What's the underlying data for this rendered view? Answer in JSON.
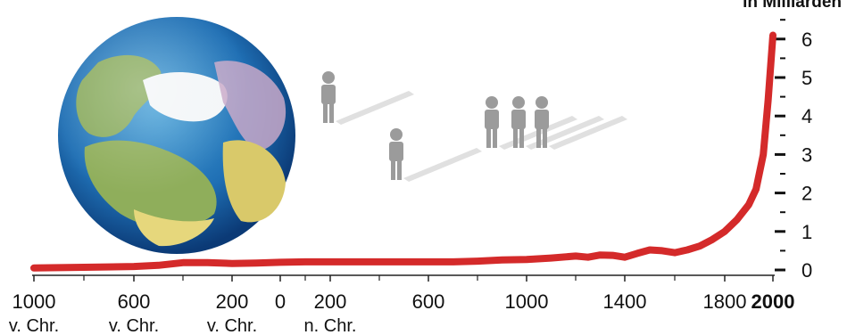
{
  "chart_data": {
    "type": "line",
    "title": "",
    "ylabel": "in Milliarden",
    "xlabel": "",
    "ylim": [
      0,
      6.5
    ],
    "grid": false,
    "legend": "none",
    "x_ticks": [
      {
        "value": -1000,
        "label": "1000",
        "sub": "v. Chr."
      },
      {
        "value": -600,
        "label": "600",
        "sub": "v. Chr."
      },
      {
        "value": -200,
        "label": "200",
        "sub": "v. Chr."
      },
      {
        "value": 0,
        "label": "0",
        "sub": ""
      },
      {
        "value": 200,
        "label": "200",
        "sub": "n. Chr."
      },
      {
        "value": 600,
        "label": "600",
        "sub": ""
      },
      {
        "value": 1000,
        "label": "1000",
        "sub": ""
      },
      {
        "value": 1400,
        "label": "1400",
        "sub": ""
      },
      {
        "value": 1800,
        "label": "1800",
        "sub": ""
      },
      {
        "value": 2000,
        "label": "2000",
        "sub": "",
        "bold": true
      }
    ],
    "y_ticks": [
      "0",
      "1",
      "2",
      "3",
      "4",
      "5",
      "6"
    ],
    "series": [
      {
        "name": "",
        "color": "#d42a2a",
        "points": [
          [
            -1000,
            0.05
          ],
          [
            -800,
            0.07
          ],
          [
            -600,
            0.09
          ],
          [
            -500,
            0.12
          ],
          [
            -400,
            0.19
          ],
          [
            -300,
            0.19
          ],
          [
            -200,
            0.17
          ],
          [
            -100,
            0.18
          ],
          [
            0,
            0.2
          ],
          [
            100,
            0.21
          ],
          [
            200,
            0.21
          ],
          [
            400,
            0.21
          ],
          [
            600,
            0.21
          ],
          [
            700,
            0.21
          ],
          [
            800,
            0.23
          ],
          [
            900,
            0.26
          ],
          [
            1000,
            0.27
          ],
          [
            1100,
            0.31
          ],
          [
            1200,
            0.36
          ],
          [
            1250,
            0.33
          ],
          [
            1300,
            0.39
          ],
          [
            1350,
            0.38
          ],
          [
            1400,
            0.33
          ],
          [
            1450,
            0.43
          ],
          [
            1500,
            0.52
          ],
          [
            1550,
            0.5
          ],
          [
            1600,
            0.45
          ],
          [
            1650,
            0.52
          ],
          [
            1700,
            0.62
          ],
          [
            1750,
            0.79
          ],
          [
            1800,
            1.0
          ],
          [
            1850,
            1.3
          ],
          [
            1900,
            1.7
          ],
          [
            1930,
            2.1
          ],
          [
            1960,
            3.0
          ],
          [
            1980,
            4.4
          ],
          [
            2000,
            6.1
          ]
        ]
      }
    ]
  },
  "decor": {
    "globe": "earth-globe-northern-hemisphere",
    "people_icons": "person-silhouette-icon",
    "people_icon_color": "#9b9b9b"
  }
}
